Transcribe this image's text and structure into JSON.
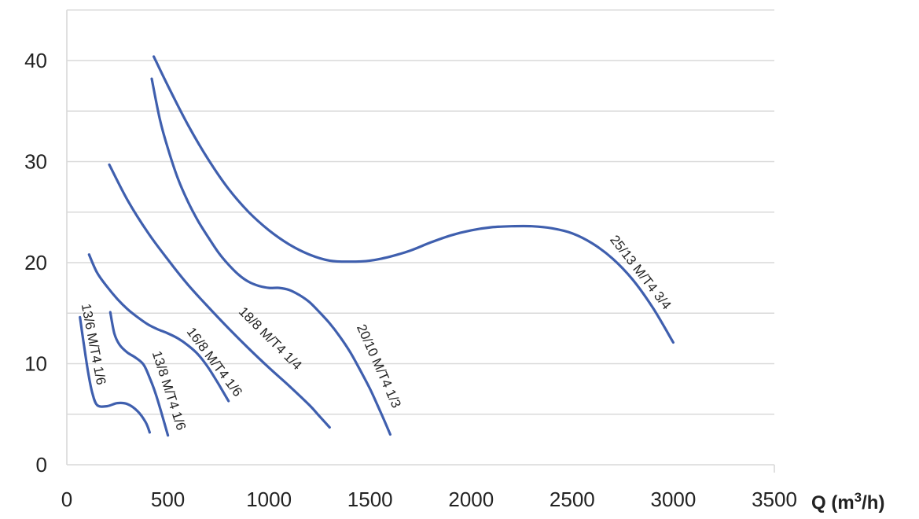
{
  "chart_data": {
    "type": "line",
    "title": "",
    "xlabel": "Q (m3/h)",
    "xlabel_parts": [
      "Q (m",
      "3",
      "/h)"
    ],
    "ylabel": "",
    "xlim": [
      0,
      3500
    ],
    "ylim": [
      0,
      45
    ],
    "xticks": [
      "0",
      "500",
      "1000",
      "1500",
      "2000",
      "2500",
      "3000",
      "3500"
    ],
    "yticks": [
      "0",
      "10",
      "20",
      "30",
      "40"
    ],
    "grid": "horizontal",
    "line_color": "#3f5fae",
    "grid_color": "#d9d9d9",
    "series": [
      {
        "name": "13/6 M/T4 1/6",
        "x": [
          65,
          85,
          105,
          125,
          150,
          200,
          250,
          300,
          350,
          390,
          410
        ],
        "y": [
          14.6,
          11.8,
          9.2,
          7.2,
          5.9,
          5.8,
          6.1,
          6.0,
          5.3,
          4.2,
          3.2
        ]
      },
      {
        "name": "13/8 M/T4 1/6",
        "x": [
          215,
          235,
          260,
          300,
          340,
          380,
          410,
          440,
          470,
          500
        ],
        "y": [
          15.1,
          13.0,
          11.9,
          11.1,
          10.6,
          9.9,
          8.6,
          7.0,
          5.0,
          2.9
        ]
      },
      {
        "name": "16/8 M/T4 1/6",
        "x": [
          110,
          150,
          200,
          250,
          300,
          350,
          400,
          450,
          500,
          550,
          600,
          650,
          700,
          750,
          800
        ],
        "y": [
          20.8,
          19.0,
          17.6,
          16.4,
          15.4,
          14.6,
          13.9,
          13.4,
          13.0,
          12.5,
          11.8,
          10.9,
          9.6,
          8.0,
          6.3
        ]
      },
      {
        "name": "18/8 M/T4 1/4",
        "x": [
          210,
          300,
          400,
          500,
          600,
          700,
          800,
          900,
          1000,
          1100,
          1200,
          1250,
          1300
        ],
        "y": [
          29.7,
          26.2,
          23.0,
          20.3,
          17.8,
          15.6,
          13.5,
          11.5,
          9.6,
          7.8,
          5.9,
          4.8,
          3.7
        ]
      },
      {
        "name": "20/10 M/T4 1/3",
        "x": [
          420,
          460,
          500,
          550,
          600,
          650,
          700,
          750,
          800,
          850,
          900,
          950,
          1000,
          1050,
          1100,
          1150,
          1200,
          1250,
          1300,
          1350,
          1400,
          1450,
          1500,
          1550,
          1600
        ],
        "y": [
          38.2,
          34.2,
          31.3,
          28.3,
          26.0,
          24.1,
          22.5,
          21.0,
          19.8,
          18.8,
          18.1,
          17.7,
          17.5,
          17.5,
          17.3,
          16.8,
          16.1,
          15.1,
          14.0,
          12.7,
          11.2,
          9.4,
          7.5,
          5.3,
          3.0
        ]
      },
      {
        "name": "25/13 M/T4 3/4",
        "x": [
          430,
          500,
          600,
          700,
          800,
          900,
          1000,
          1100,
          1200,
          1300,
          1400,
          1500,
          1600,
          1700,
          1800,
          1900,
          2000,
          2100,
          2200,
          2300,
          2400,
          2500,
          2600,
          2700,
          2800,
          2900,
          3000
        ],
        "y": [
          40.4,
          37.5,
          33.6,
          30.2,
          27.3,
          25.0,
          23.2,
          21.8,
          20.8,
          20.2,
          20.1,
          20.2,
          20.6,
          21.2,
          22.0,
          22.7,
          23.2,
          23.5,
          23.6,
          23.6,
          23.4,
          22.9,
          21.9,
          20.4,
          18.3,
          15.5,
          12.1
        ]
      }
    ]
  }
}
